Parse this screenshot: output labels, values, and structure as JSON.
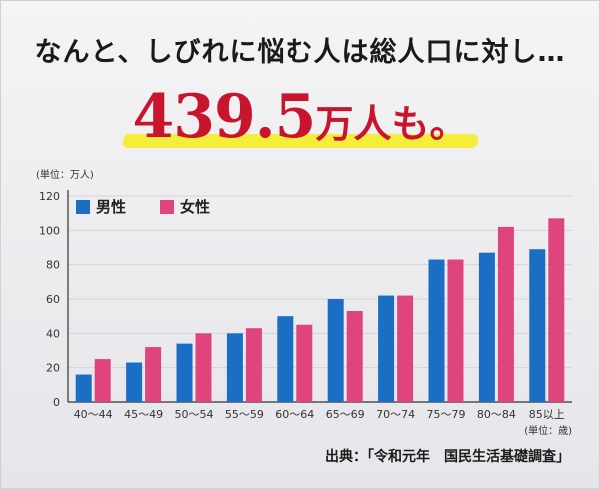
{
  "headline": "なんと、しびれに悩む人は総人口に対し…",
  "big_value": "439.5",
  "big_unit": "万人も。",
  "source": "出典：「令和元年　国民生活基礎調査」",
  "colors": {
    "male": "#1a6fc4",
    "female": "#e0447c",
    "highlight": "#f4ee3a",
    "accent": "#c8152d"
  },
  "chart_data": {
    "type": "bar",
    "y_unit_label": "(単位：万人)",
    "x_unit_label": "(単位：歳)",
    "categories": [
      "40～44",
      "45～49",
      "50～54",
      "55～59",
      "60～64",
      "65～69",
      "70～74",
      "75～79",
      "80～84",
      "85以上"
    ],
    "series": [
      {
        "name": "男性",
        "values": [
          16,
          23,
          34,
          40,
          50,
          60,
          62,
          83,
          87,
          89
        ]
      },
      {
        "name": "女性",
        "values": [
          25,
          32,
          40,
          43,
          45,
          53,
          62,
          83,
          102,
          107
        ]
      }
    ],
    "ylim": [
      0,
      120
    ],
    "yticks": [
      0,
      20,
      40,
      60,
      80,
      100,
      120
    ],
    "legend_placement": "top-left",
    "grid": true
  }
}
